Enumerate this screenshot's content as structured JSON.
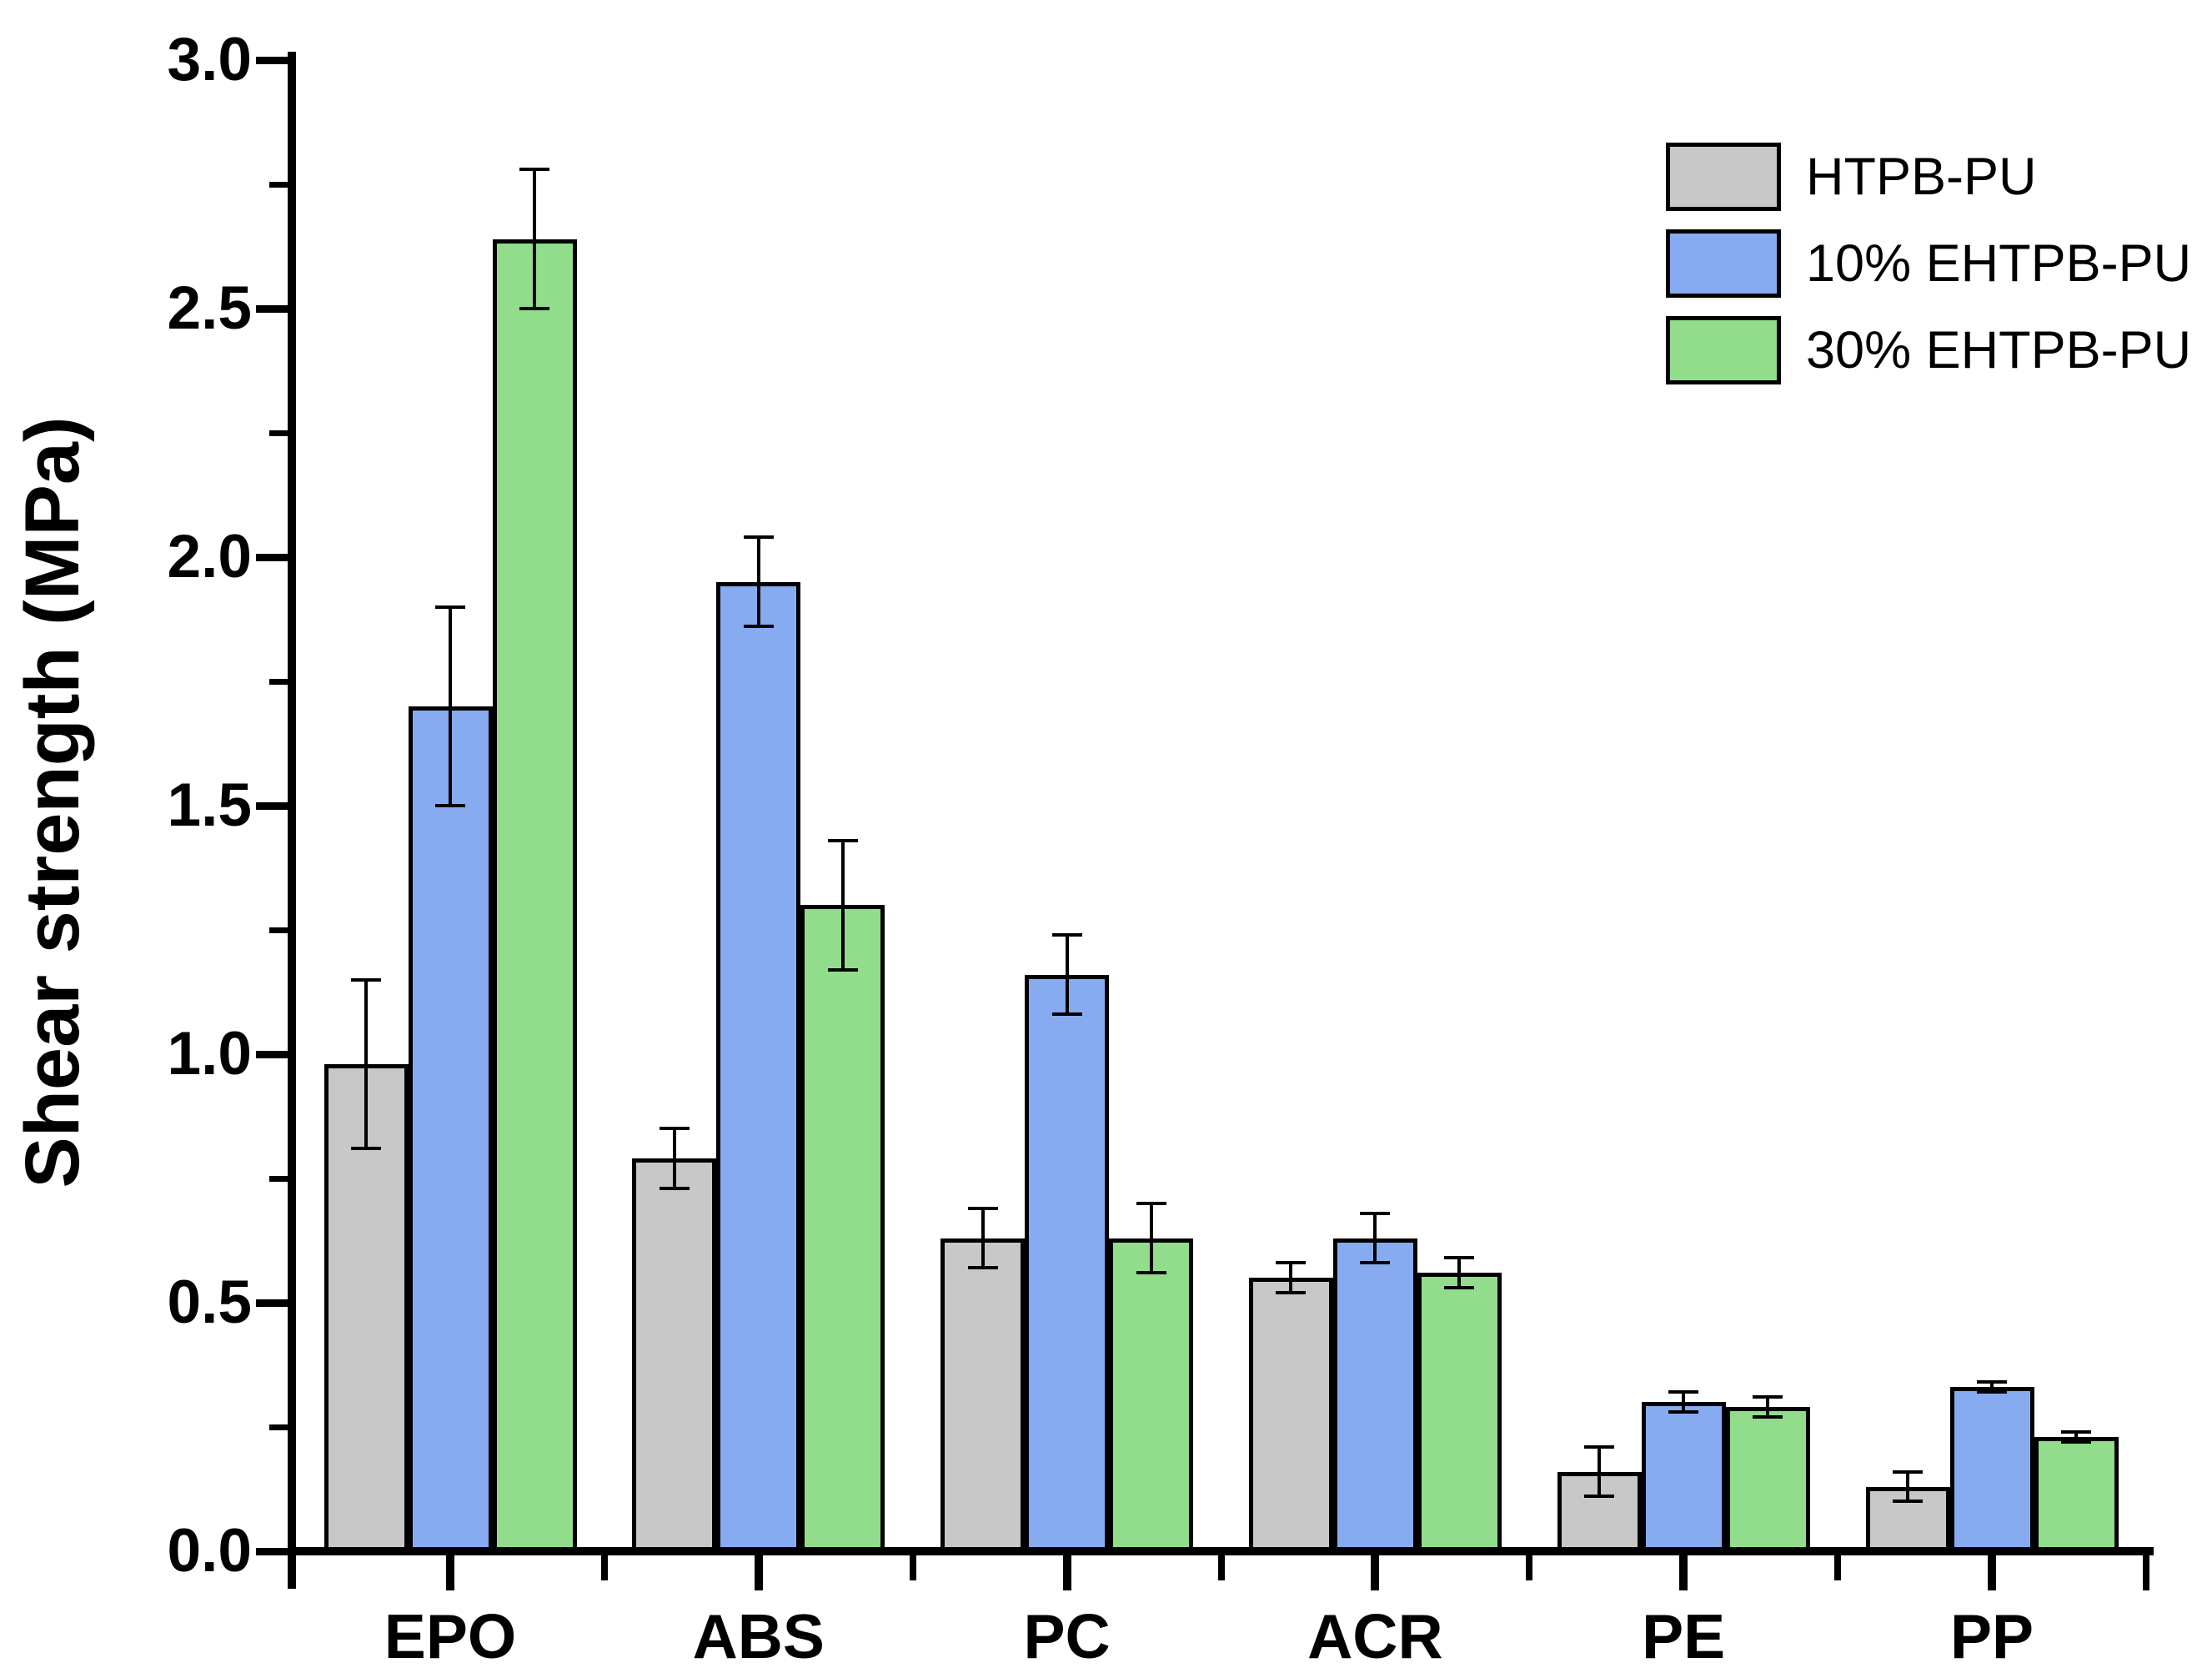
{
  "chart_data": {
    "type": "bar",
    "title": "",
    "xlabel": "",
    "ylabel": "Shear strength (MPa)",
    "ylim": [
      0.0,
      3.0
    ],
    "ytick_step": 0.5,
    "ytick_labels": [
      "0.0",
      "0.5",
      "1.0",
      "1.5",
      "2.0",
      "2.5",
      "3.0"
    ],
    "yminor_tick_step": 0.25,
    "grid": false,
    "legend_position": "top-right",
    "bar_border_color": "#000000",
    "error_bar_color": "#000000",
    "categories": [
      "EPO",
      "ABS",
      "PC",
      "ACR",
      "PE",
      "PP"
    ],
    "series": [
      {
        "name": "HTPB-PU",
        "color": "#c8c8c8",
        "values": [
          0.98,
          0.79,
          0.63,
          0.55,
          0.16,
          0.13
        ],
        "errors": [
          0.17,
          0.06,
          0.06,
          0.03,
          0.05,
          0.03
        ]
      },
      {
        "name": "10% EHTPB-PU",
        "color": "#87abf0",
        "values": [
          1.7,
          1.95,
          1.16,
          0.63,
          0.3,
          0.33
        ],
        "errors": [
          0.2,
          0.09,
          0.08,
          0.05,
          0.02,
          0.01
        ]
      },
      {
        "name": "30% EHTPB-PU",
        "color": "#91dd8c",
        "values": [
          2.64,
          1.3,
          0.63,
          0.56,
          0.29,
          0.23
        ],
        "errors": [
          0.14,
          0.13,
          0.07,
          0.03,
          0.02,
          0.01
        ]
      }
    ]
  }
}
